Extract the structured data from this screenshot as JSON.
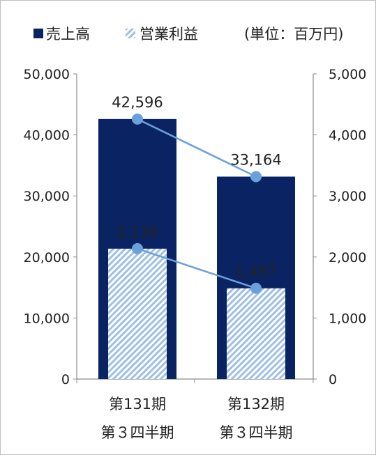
{
  "chart_data": {
    "type": "bar",
    "unit_note": "(単位：百万円)",
    "legend_position": "top",
    "categories": [
      [
        "第131期",
        "第３四半期"
      ],
      [
        "第132期",
        "第３四半期"
      ]
    ],
    "y_left": {
      "min": 0,
      "max": 50000,
      "ticks": [
        "0",
        "10,000",
        "20,000",
        "30,000",
        "40,000",
        "50,000"
      ]
    },
    "y_right": {
      "min": 0,
      "max": 5000,
      "ticks": [
        "0",
        "1,000",
        "2,000",
        "3,000",
        "4,000",
        "5,000"
      ]
    },
    "series": [
      {
        "name": "売上高",
        "axis": "left",
        "values": [
          42596,
          33164
        ],
        "labels": [
          "42,596",
          "33,164"
        ],
        "color": "#0a2463"
      },
      {
        "name": "営業利益",
        "axis": "right",
        "values": [
          2136,
          1487
        ],
        "labels": [
          "2,136",
          "1,487"
        ],
        "color": "#9fbfe6"
      }
    ],
    "marker_color": "#6aa0dc",
    "grid": false
  }
}
